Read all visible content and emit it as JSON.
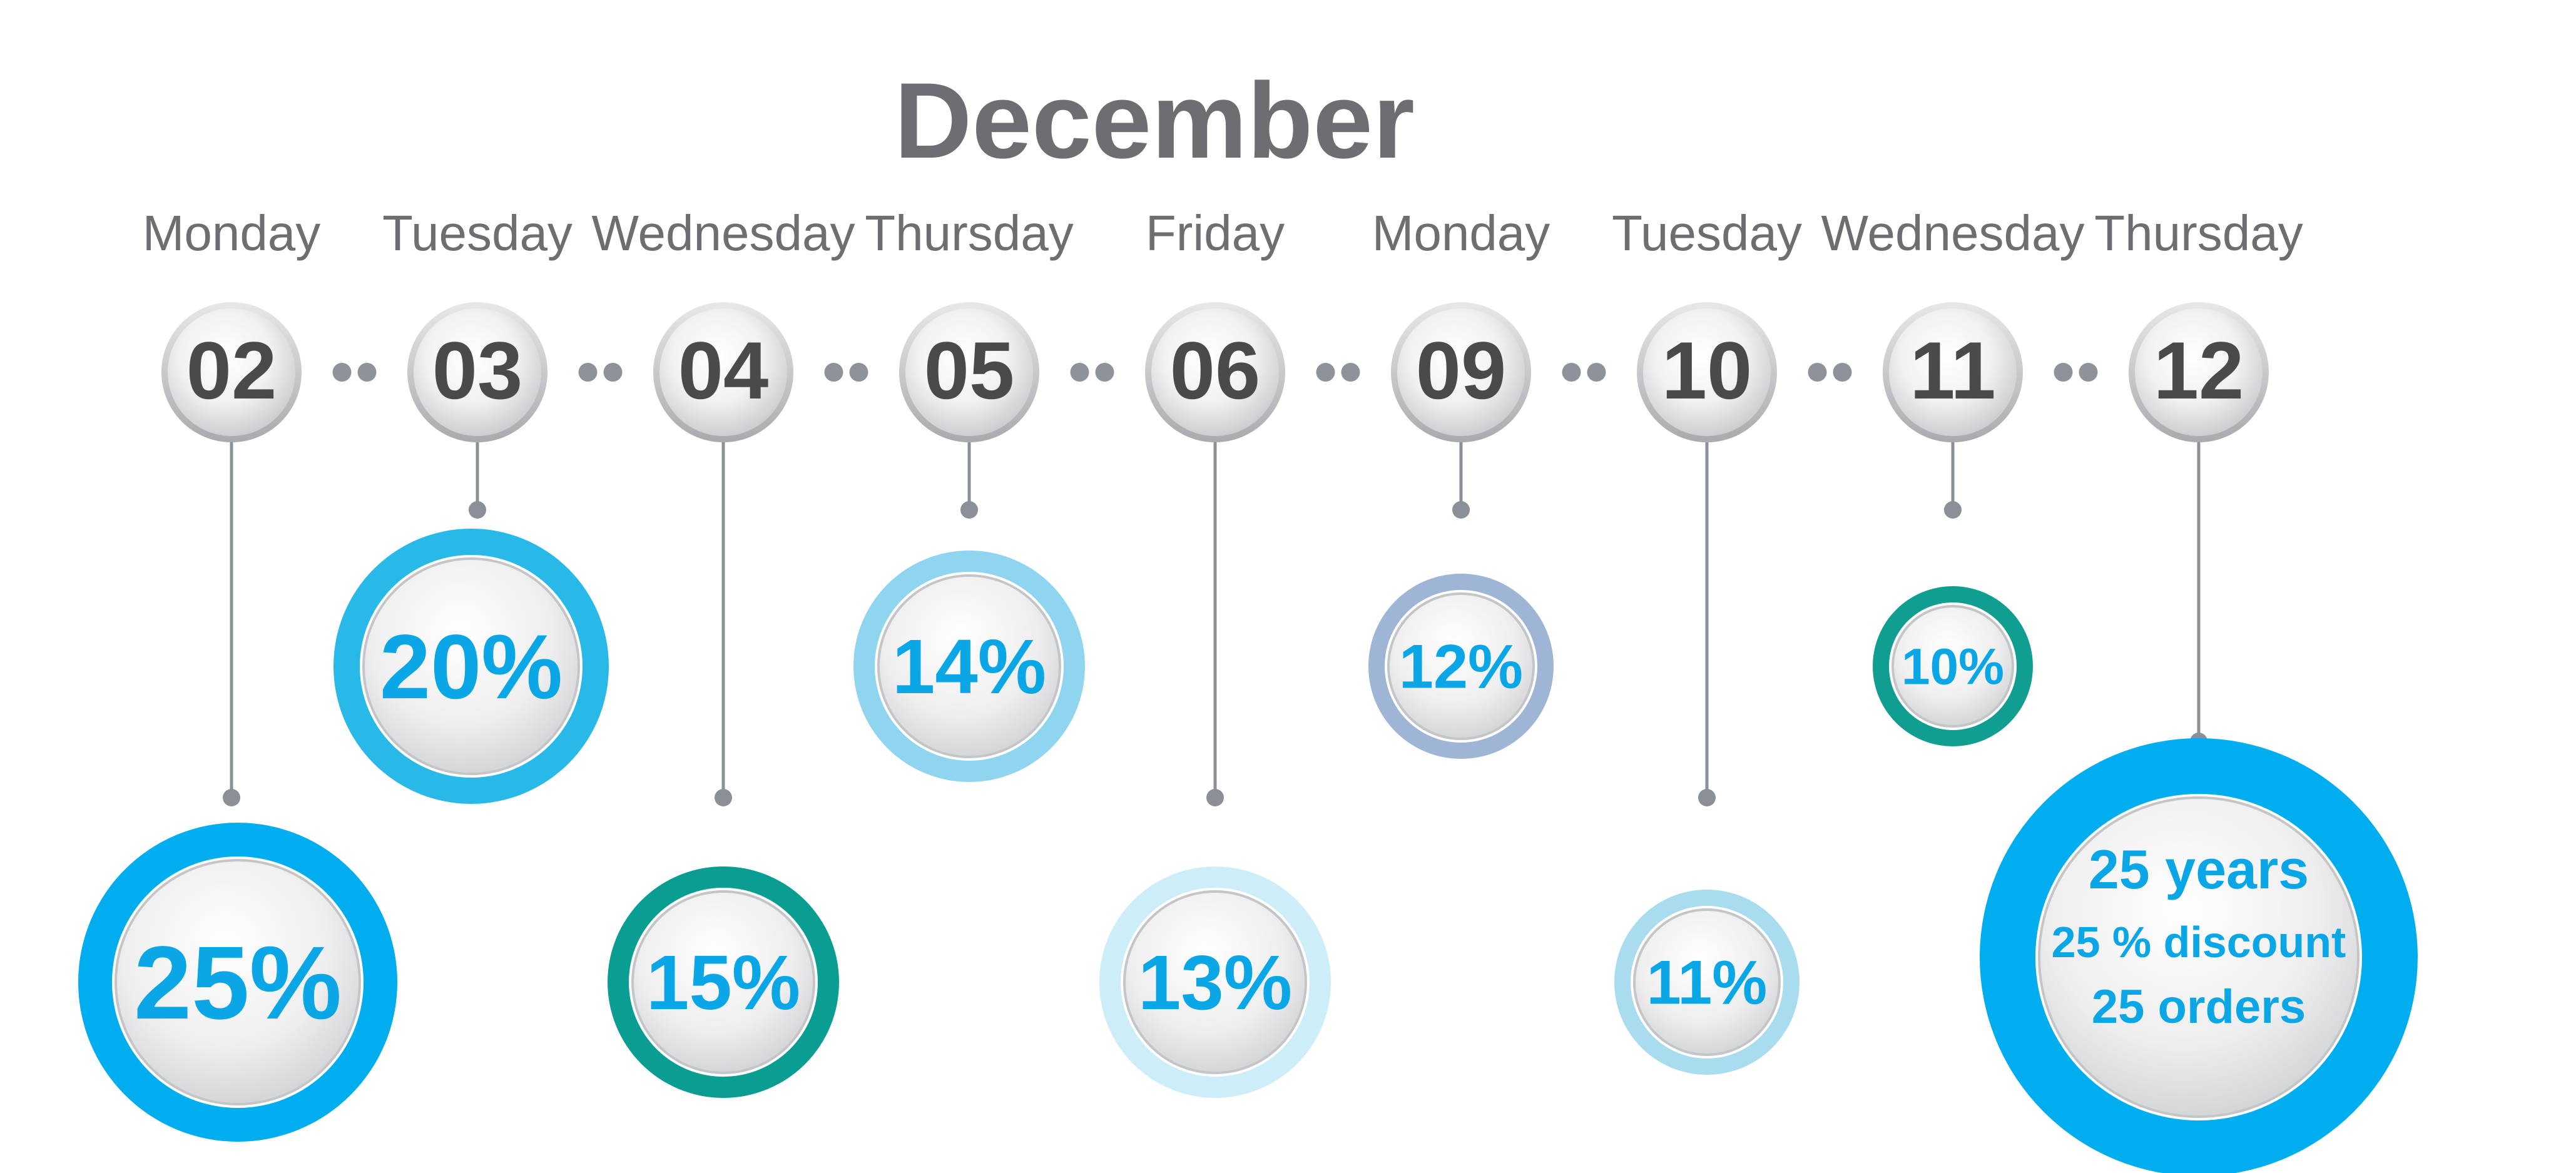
{
  "title": "December",
  "colors": {
    "text_gray": "#6d6e71",
    "number_dark": "#4a4a4c",
    "connector": "#8a8f98",
    "dot": "#8e939b",
    "percent_text": "#0aa6e6"
  },
  "days": [
    {
      "weekday": "Monday",
      "date": "02",
      "level": 3,
      "label": "25%",
      "ring_color": "#00aeef",
      "size": 5
    },
    {
      "weekday": "Tuesday",
      "date": "03",
      "level": 1,
      "label": "20%",
      "ring_color": "#28b9e8",
      "size": 4
    },
    {
      "weekday": "Wednesday",
      "date": "04",
      "level": 3,
      "label": "15%",
      "ring_color": "#0a9e93",
      "size": 3
    },
    {
      "weekday": "Thursday",
      "date": "05",
      "level": 1,
      "label": "14%",
      "ring_color": "#8fd5ef",
      "size": 3
    },
    {
      "weekday": "Friday",
      "date": "06",
      "level": 3,
      "label": "13%",
      "ring_color": "#cdedf8",
      "size": 3
    },
    {
      "weekday": "Monday",
      "date": "09",
      "level": 1,
      "label": "12%",
      "ring_color": "#9fb5d6",
      "size": 2
    },
    {
      "weekday": "Tuesday",
      "date": "10",
      "level": 3,
      "label": "11%",
      "ring_color": "#a9dcef",
      "size": 2
    },
    {
      "weekday": "Wednesday",
      "date": "11",
      "level": 1,
      "label": "10%",
      "ring_color": "#0f9e8f",
      "size": 1
    },
    {
      "weekday": "Thursday",
      "date": "12",
      "level": 2,
      "label": "",
      "ring_color": "#00aeef",
      "size": 6,
      "lines": [
        "25 years",
        "25 % discount",
        "25 orders"
      ]
    }
  ]
}
